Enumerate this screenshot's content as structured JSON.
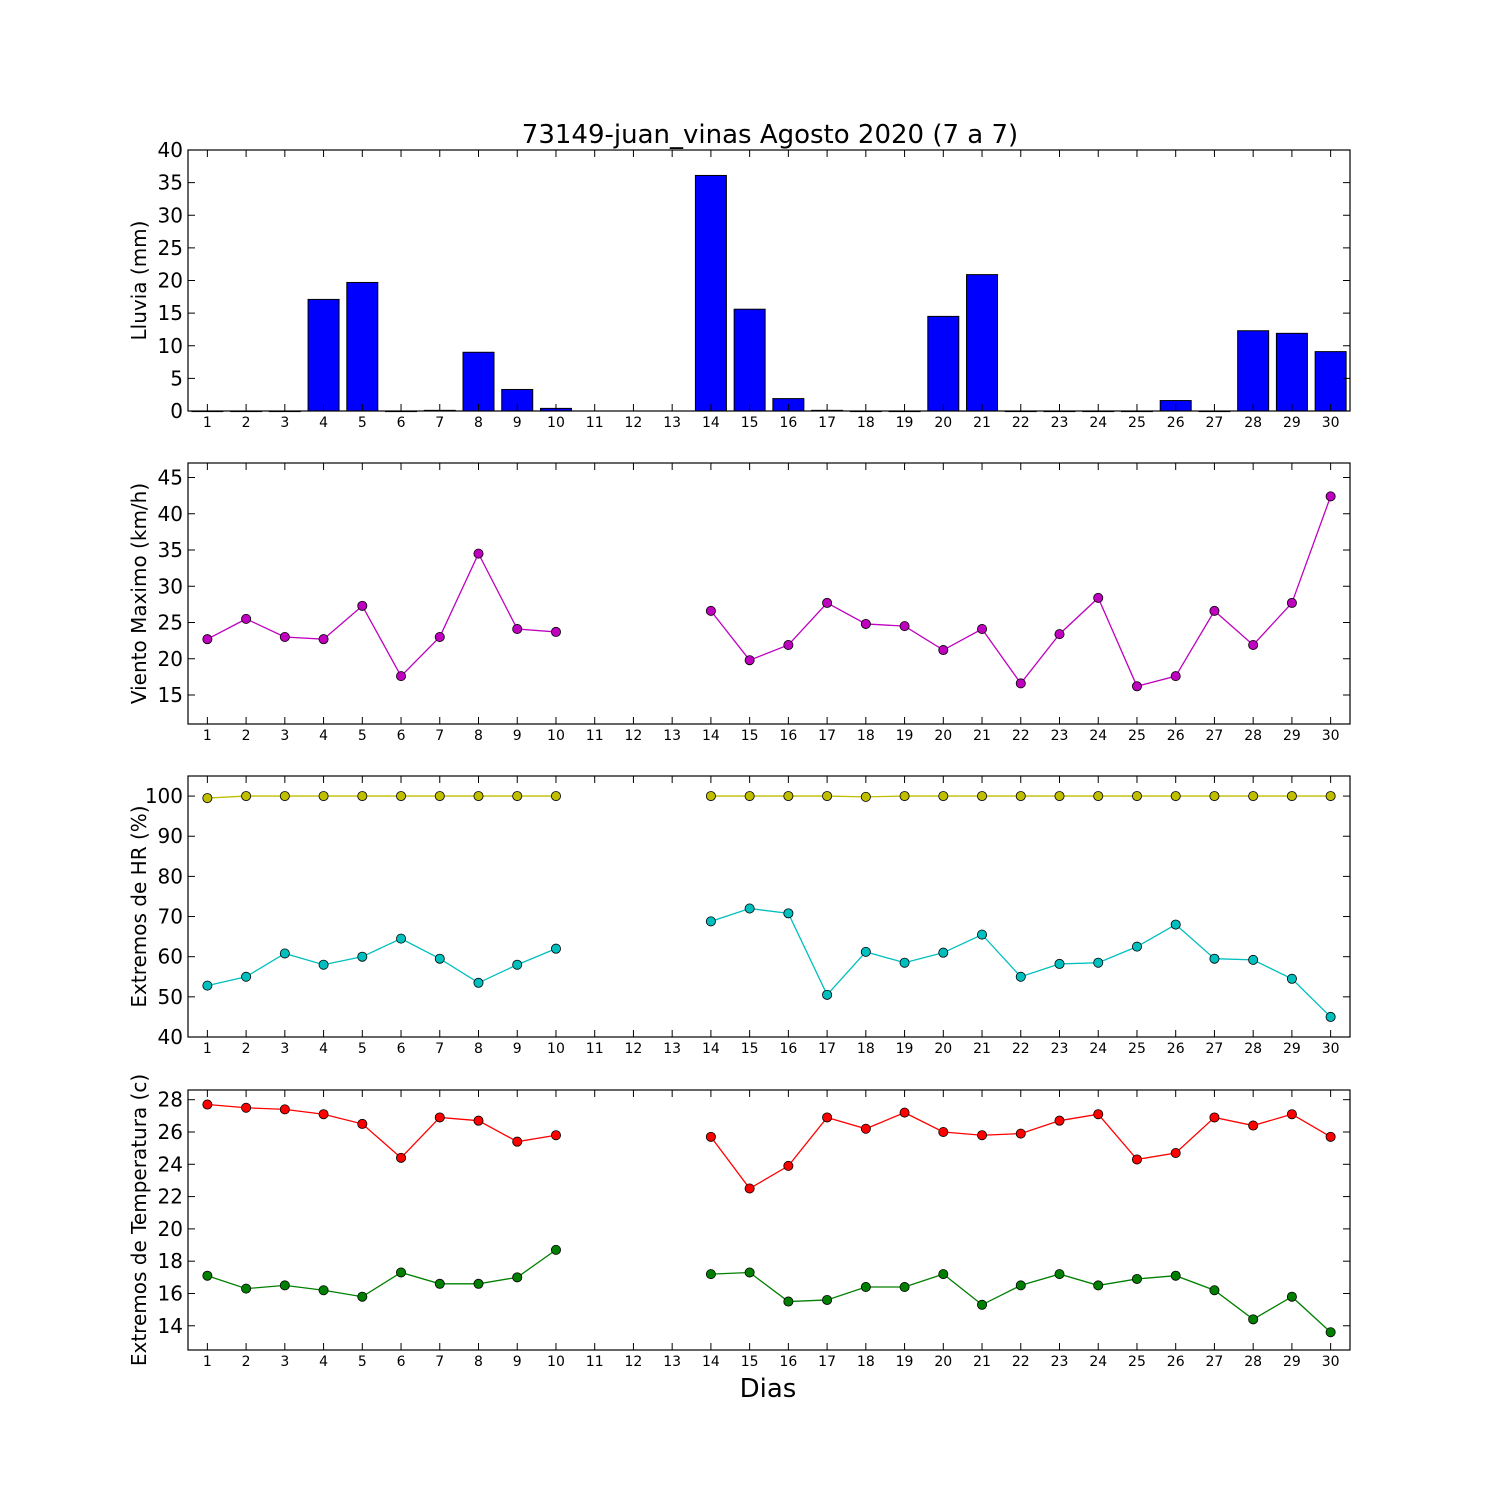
{
  "title": "73149-juan_vinas Agosto 2020  (7 a 7)",
  "xlabel": "Dias",
  "chart_data": [
    {
      "type": "bar",
      "ylabel": "Lluvia (mm)",
      "ylim": [
        0,
        40
      ],
      "yticks": [
        0,
        5,
        10,
        15,
        20,
        25,
        30,
        35,
        40
      ],
      "x": [
        1,
        2,
        3,
        4,
        5,
        6,
        7,
        8,
        9,
        10,
        11,
        12,
        13,
        14,
        15,
        16,
        17,
        18,
        19,
        20,
        21,
        22,
        23,
        24,
        25,
        26,
        27,
        28,
        29,
        30
      ],
      "xticks": [
        "1",
        "2",
        "3",
        "4",
        "5",
        "6",
        "7",
        "8",
        "9",
        "10",
        "11",
        "12",
        "13",
        "14",
        "15",
        "16",
        "17",
        "18",
        "19",
        "20",
        "21",
        "22",
        "23",
        "24",
        "25",
        "26",
        "27",
        "28",
        "29",
        "30"
      ],
      "series": [
        {
          "color": "#0000ff",
          "values": [
            0,
            0,
            0,
            17.1,
            19.7,
            0,
            0.1,
            9.0,
            3.3,
            0.4,
            null,
            null,
            null,
            36.1,
            15.6,
            1.9,
            0.1,
            0,
            0,
            14.5,
            20.9,
            0,
            0,
            0,
            0,
            1.6,
            0,
            12.3,
            11.9,
            9.1
          ]
        }
      ]
    },
    {
      "type": "line",
      "ylabel": "Viento Maximo (km/h)",
      "ylim": [
        11,
        47
      ],
      "yticks": [
        15,
        20,
        25,
        30,
        35,
        40,
        45
      ],
      "x": [
        1,
        2,
        3,
        4,
        5,
        6,
        7,
        8,
        9,
        10,
        11,
        12,
        13,
        14,
        15,
        16,
        17,
        18,
        19,
        20,
        21,
        22,
        23,
        24,
        25,
        26,
        27,
        28,
        29,
        30
      ],
      "xticks": [
        "1",
        "2",
        "3",
        "4",
        "5",
        "6",
        "7",
        "8",
        "9",
        "10",
        "11",
        "12",
        "13",
        "14",
        "15",
        "16",
        "17",
        "18",
        "19",
        "20",
        "21",
        "22",
        "23",
        "24",
        "25",
        "26",
        "27",
        "28",
        "29",
        "30"
      ],
      "series": [
        {
          "color": "#bf00bf",
          "values": [
            22.7,
            25.5,
            23.0,
            22.7,
            27.3,
            17.6,
            23.0,
            34.5,
            24.1,
            23.7,
            null,
            null,
            null,
            26.6,
            19.8,
            21.9,
            27.7,
            24.8,
            24.5,
            21.2,
            24.1,
            16.6,
            23.4,
            28.4,
            16.2,
            17.6,
            26.6,
            21.9,
            27.7,
            42.4
          ]
        }
      ]
    },
    {
      "type": "line",
      "ylabel": "Extremos de HR (%)",
      "ylim": [
        40,
        105
      ],
      "yticks": [
        40,
        50,
        60,
        70,
        80,
        90,
        100
      ],
      "x": [
        1,
        2,
        3,
        4,
        5,
        6,
        7,
        8,
        9,
        10,
        11,
        12,
        13,
        14,
        15,
        16,
        17,
        18,
        19,
        20,
        21,
        22,
        23,
        24,
        25,
        26,
        27,
        28,
        29,
        30
      ],
      "xticks": [
        "1",
        "2",
        "3",
        "4",
        "5",
        "6",
        "7",
        "8",
        "9",
        "10",
        "11",
        "12",
        "13",
        "14",
        "15",
        "16",
        "17",
        "18",
        "19",
        "20",
        "21",
        "22",
        "23",
        "24",
        "25",
        "26",
        "27",
        "28",
        "29",
        "30"
      ],
      "series": [
        {
          "color": "#bfbf00",
          "values": [
            99.5,
            100,
            100,
            100,
            100,
            100,
            100,
            100,
            100,
            100,
            null,
            null,
            null,
            100,
            100,
            100,
            100,
            99.8,
            100,
            100,
            100,
            100,
            100,
            100,
            100,
            100,
            100,
            100,
            100,
            100
          ]
        },
        {
          "color": "#00bfbf",
          "values": [
            52.8,
            55.0,
            60.8,
            58.0,
            60.0,
            64.5,
            59.5,
            53.5,
            58.0,
            62.0,
            null,
            null,
            null,
            68.8,
            72.0,
            70.8,
            50.5,
            61.2,
            58.5,
            61.0,
            65.5,
            55.0,
            58.2,
            58.5,
            62.5,
            68.0,
            59.5,
            59.2,
            54.5,
            45.0
          ]
        }
      ]
    },
    {
      "type": "line",
      "ylabel": "Extremos de Temperatura (c)",
      "ylim": [
        12.5,
        28.6
      ],
      "yticks": [
        14,
        16,
        18,
        20,
        22,
        24,
        26,
        28
      ],
      "x": [
        1,
        2,
        3,
        4,
        5,
        6,
        7,
        8,
        9,
        10,
        11,
        12,
        13,
        14,
        15,
        16,
        17,
        18,
        19,
        20,
        21,
        22,
        23,
        24,
        25,
        26,
        27,
        28,
        29,
        30
      ],
      "xticks": [
        "1",
        "2",
        "3",
        "4",
        "5",
        "6",
        "7",
        "8",
        "9",
        "10",
        "11",
        "12",
        "13",
        "14",
        "15",
        "16",
        "17",
        "18",
        "19",
        "20",
        "21",
        "22",
        "23",
        "24",
        "25",
        "26",
        "27",
        "28",
        "29",
        "30"
      ],
      "series": [
        {
          "color": "#ff0000",
          "values": [
            27.7,
            27.5,
            27.4,
            27.1,
            26.5,
            24.4,
            26.9,
            26.7,
            25.4,
            25.8,
            null,
            null,
            null,
            25.7,
            22.5,
            23.9,
            26.9,
            26.2,
            27.2,
            26.0,
            25.8,
            25.9,
            26.7,
            27.1,
            24.3,
            24.7,
            26.9,
            26.4,
            27.1,
            25.7
          ]
        },
        {
          "color": "#008000",
          "values": [
            17.1,
            16.3,
            16.5,
            16.2,
            15.8,
            17.3,
            16.6,
            16.6,
            17.0,
            18.7,
            null,
            null,
            null,
            17.2,
            17.3,
            15.5,
            15.6,
            16.4,
            16.4,
            17.2,
            15.3,
            16.5,
            17.2,
            16.5,
            16.9,
            17.1,
            16.2,
            14.4,
            15.8,
            13.6
          ]
        }
      ]
    }
  ]
}
